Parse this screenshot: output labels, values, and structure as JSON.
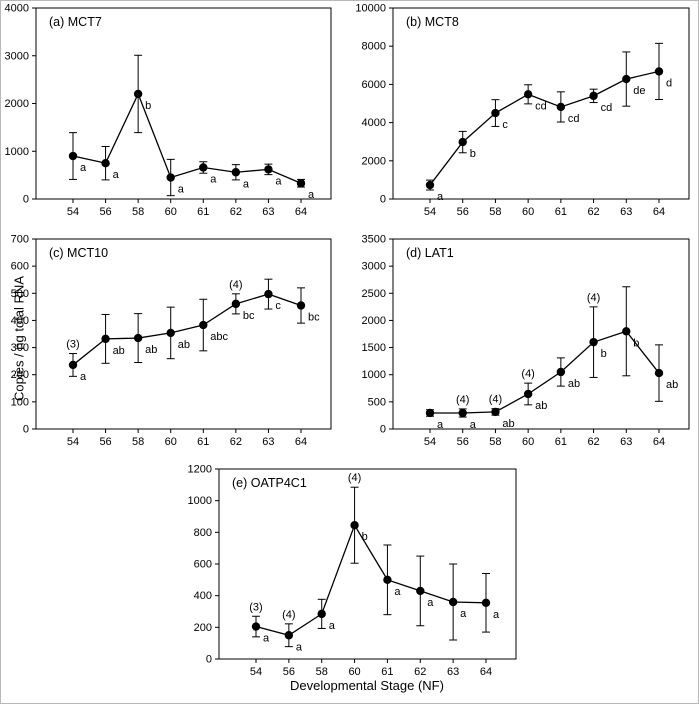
{
  "figure": {
    "ylabel": "Copies / ng total RNA",
    "xlabel": "Developmental Stage (NF)"
  },
  "chart_data": [
    {
      "type": "line",
      "panel": "a",
      "title": "(a) MCT7",
      "x": [
        54,
        56,
        58,
        60,
        61,
        62,
        63,
        64
      ],
      "values": [
        900,
        750,
        2200,
        450,
        660,
        560,
        620,
        330
      ],
      "errors": [
        490,
        350,
        810,
        380,
        120,
        160,
        110,
        80
      ],
      "point_labels": [
        "a",
        "a",
        "b",
        "a",
        "a",
        "a",
        "a",
        "a"
      ],
      "annotations": [],
      "ylim": [
        0,
        4000
      ],
      "yticks": [
        0,
        1000,
        2000,
        3000,
        4000
      ]
    },
    {
      "type": "line",
      "panel": "b",
      "title": "(b) MCT8",
      "x": [
        54,
        56,
        58,
        60,
        61,
        62,
        63,
        64
      ],
      "values": [
        730,
        2980,
        4500,
        5480,
        4820,
        5400,
        6280,
        6680
      ],
      "errors": [
        260,
        560,
        700,
        500,
        790,
        350,
        1420,
        1470
      ],
      "point_labels": [
        "a",
        "b",
        "c",
        "cd",
        "cd",
        "cd",
        "de",
        "d"
      ],
      "annotations": [],
      "ylim": [
        0,
        10000
      ],
      "yticks": [
        0,
        2000,
        4000,
        6000,
        8000,
        10000
      ]
    },
    {
      "type": "line",
      "panel": "c",
      "title": "(c) MCT10",
      "x": [
        54,
        56,
        58,
        60,
        61,
        62,
        63,
        64
      ],
      "values": [
        236,
        332,
        335,
        354,
        383,
        461,
        497,
        455
      ],
      "errors": [
        42,
        90,
        90,
        95,
        95,
        37,
        55,
        65
      ],
      "point_labels": [
        "a",
        "ab",
        "ab",
        "ab",
        "abc",
        "bc",
        "c",
        "bc"
      ],
      "annotations": [
        {
          "x": 54,
          "text": "(3)"
        },
        {
          "x": 62,
          "text": "(4)"
        }
      ],
      "ylim": [
        0,
        700
      ],
      "yticks": [
        0,
        100,
        200,
        300,
        400,
        500,
        600,
        700
      ]
    },
    {
      "type": "line",
      "panel": "d",
      "title": "(d) LAT1",
      "x": [
        54,
        56,
        58,
        60,
        61,
        62,
        63,
        64
      ],
      "values": [
        295,
        295,
        315,
        645,
        1050,
        1600,
        1800,
        1030
      ],
      "errors": [
        60,
        75,
        60,
        200,
        260,
        650,
        820,
        520
      ],
      "point_labels": [
        "a",
        "a",
        "ab",
        "ab",
        "ab",
        "b",
        "b",
        "ab"
      ],
      "annotations": [
        {
          "x": 56,
          "text": "(4)"
        },
        {
          "x": 58,
          "text": "(4)"
        },
        {
          "x": 60,
          "text": "(4)"
        },
        {
          "x": 62,
          "text": "(4)"
        }
      ],
      "ylim": [
        0,
        3500
      ],
      "yticks": [
        0,
        500,
        1000,
        1500,
        2000,
        2500,
        3000,
        3500
      ]
    },
    {
      "type": "line",
      "panel": "e",
      "title": "(e) OATP4C1",
      "x": [
        54,
        56,
        58,
        60,
        61,
        62,
        63,
        64
      ],
      "values": [
        205,
        150,
        285,
        845,
        500,
        430,
        360,
        355
      ],
      "errors": [
        65,
        72,
        92,
        240,
        220,
        220,
        240,
        185
      ],
      "point_labels": [
        "a",
        "a",
        "a",
        "b",
        "a",
        "a",
        "a",
        "a"
      ],
      "annotations": [
        {
          "x": 54,
          "text": "(3)"
        },
        {
          "x": 56,
          "text": "(4)"
        },
        {
          "x": 60,
          "text": "(4)"
        }
      ],
      "ylim": [
        0,
        1200
      ],
      "yticks": [
        0,
        200,
        400,
        600,
        800,
        1000,
        1200
      ]
    }
  ]
}
